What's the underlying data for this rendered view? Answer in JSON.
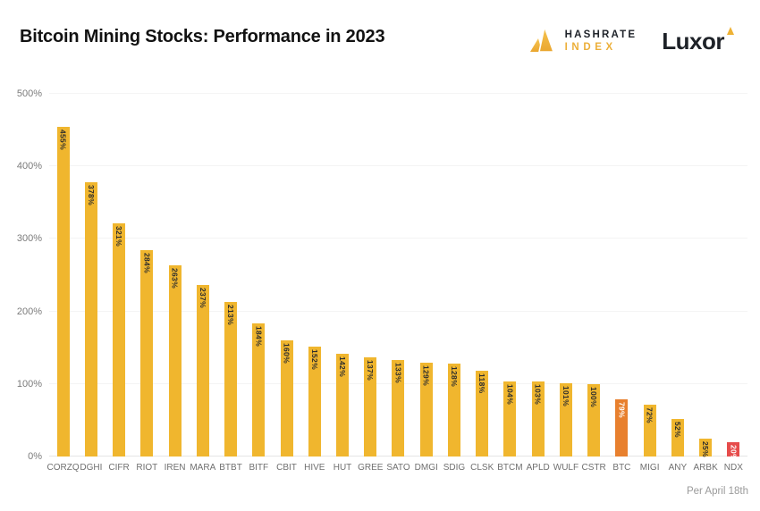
{
  "header": {
    "title": "Bitcoin Mining Stocks: Performance in 2023",
    "hashrate_logo": {
      "line1": "HASHRATE",
      "line2": "INDEX"
    },
    "luxor_logo": "Luxor"
  },
  "footer": {
    "note": "Per April 18th"
  },
  "colors": {
    "bar_yellow": "#F0B62E",
    "bar_orange": "#E8802E",
    "bar_red": "#E64C4B",
    "bar_label_dark": "#2D2D2D",
    "bar_label_light": "#FFFFFF",
    "axis_text": "#7B7B7B",
    "gridline": "#F4F4F4",
    "baseline": "#E4E4E4",
    "accent_gold": "#ECAF3A"
  },
  "chart_data": {
    "type": "bar",
    "title": "Bitcoin Mining Stocks: Performance in 2023",
    "categories": [
      "CORZQ",
      "DGHI",
      "CIFR",
      "RIOT",
      "IREN",
      "MARA",
      "BTBT",
      "BITF",
      "CBIT",
      "HIVE",
      "HUT",
      "GREE",
      "SATO",
      "DMGI",
      "SDIG",
      "CLSK",
      "BTCM",
      "APLD",
      "WULF",
      "CSTR",
      "BTC",
      "MIGI",
      "ANY",
      "ARBK",
      "NDX"
    ],
    "values": [
      455,
      378,
      321,
      284,
      263,
      237,
      213,
      184,
      160,
      152,
      142,
      137,
      133,
      129,
      128,
      118,
      104,
      103,
      101,
      100,
      79,
      72,
      52,
      25,
      20
    ],
    "value_labels": [
      "455%",
      "378%",
      "321%",
      "284%",
      "263%",
      "237%",
      "213%",
      "184%",
      "160%",
      "152%",
      "142%",
      "137%",
      "133%",
      "129%",
      "128%",
      "118%",
      "104%",
      "103%",
      "101%",
      "100%",
      "79%",
      "72%",
      "52%",
      "25%",
      "20%"
    ],
    "bar_color_roles": [
      "yellow",
      "yellow",
      "yellow",
      "yellow",
      "yellow",
      "yellow",
      "yellow",
      "yellow",
      "yellow",
      "yellow",
      "yellow",
      "yellow",
      "yellow",
      "yellow",
      "yellow",
      "yellow",
      "yellow",
      "yellow",
      "yellow",
      "yellow",
      "orange",
      "yellow",
      "yellow",
      "yellow",
      "red"
    ],
    "xlabel": "",
    "ylabel": "",
    "ylim": [
      0,
      500
    ],
    "yticks": [
      0,
      100,
      200,
      300,
      400,
      500
    ],
    "ytick_labels": [
      "0%",
      "100%",
      "200%",
      "300%",
      "400%",
      "500%"
    ],
    "grid": "horizontal",
    "legend": "none",
    "annotation": "Per April 18th"
  }
}
